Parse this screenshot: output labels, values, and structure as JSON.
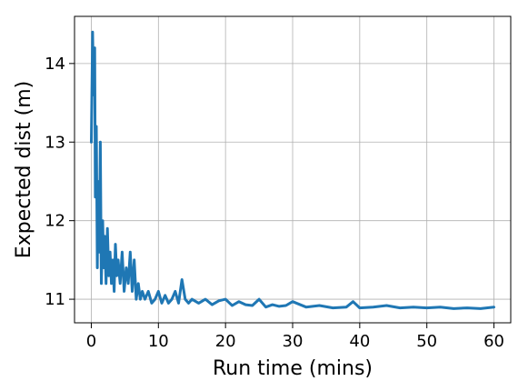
{
  "chart_data": {
    "type": "line",
    "title": "",
    "xlabel": "Run time (mins)",
    "ylabel": "Expected dist (m)",
    "xlim": [
      -2.5,
      62.5
    ],
    "ylim": [
      10.7,
      14.6
    ],
    "xticks": [
      0,
      10,
      20,
      30,
      40,
      50,
      60
    ],
    "xtick_labels": [
      "0",
      "10",
      "20",
      "30",
      "40",
      "50",
      "60"
    ],
    "yticks": [
      11,
      12,
      13,
      14
    ],
    "ytick_labels": [
      "11",
      "12",
      "13",
      "14"
    ],
    "grid": true,
    "legend": "none",
    "series": [
      {
        "color": "#1f77b4",
        "x": [
          0.0,
          0.2,
          0.35,
          0.5,
          0.6,
          0.75,
          0.9,
          1.0,
          1.1,
          1.2,
          1.35,
          1.5,
          1.7,
          1.85,
          2.0,
          2.2,
          2.4,
          2.6,
          2.8,
          3.0,
          3.2,
          3.4,
          3.6,
          3.8,
          4.0,
          4.3,
          4.6,
          4.9,
          5.2,
          5.5,
          5.8,
          6.1,
          6.4,
          6.7,
          7.0,
          7.3,
          7.6,
          8.0,
          8.5,
          9.0,
          9.5,
          10.0,
          10.5,
          11.0,
          11.5,
          12.0,
          12.5,
          13.0,
          13.5,
          14.0,
          14.5,
          15.0,
          16.0,
          17.0,
          18.0,
          19.0,
          20.0,
          21.0,
          22.0,
          23.0,
          24.0,
          25.0,
          26.0,
          27.0,
          28.0,
          29.0,
          30.0,
          32.0,
          34.0,
          36.0,
          38.0,
          39.0,
          40.0,
          42.0,
          44.0,
          46.0,
          48.0,
          50.0,
          52.0,
          54.0,
          56.0,
          58.0,
          60.0
        ],
        "y": [
          13.0,
          14.4,
          13.6,
          14.2,
          12.3,
          13.2,
          11.4,
          12.5,
          11.7,
          11.6,
          13.0,
          11.2,
          12.0,
          11.4,
          11.8,
          11.2,
          11.9,
          11.3,
          11.6,
          11.2,
          11.5,
          11.1,
          11.7,
          11.3,
          11.5,
          11.2,
          11.6,
          11.1,
          11.4,
          11.2,
          11.6,
          11.1,
          11.5,
          11.0,
          11.2,
          11.0,
          11.1,
          11.0,
          11.1,
          10.95,
          11.0,
          11.1,
          10.95,
          11.05,
          10.95,
          11.0,
          11.1,
          10.95,
          11.25,
          11.0,
          10.95,
          11.0,
          10.95,
          11.0,
          10.93,
          10.98,
          11.0,
          10.92,
          10.97,
          10.93,
          10.92,
          11.0,
          10.9,
          10.93,
          10.91,
          10.92,
          10.97,
          10.9,
          10.92,
          10.89,
          10.9,
          10.97,
          10.89,
          10.9,
          10.92,
          10.89,
          10.9,
          10.89,
          10.9,
          10.88,
          10.89,
          10.88,
          10.9
        ]
      }
    ]
  }
}
